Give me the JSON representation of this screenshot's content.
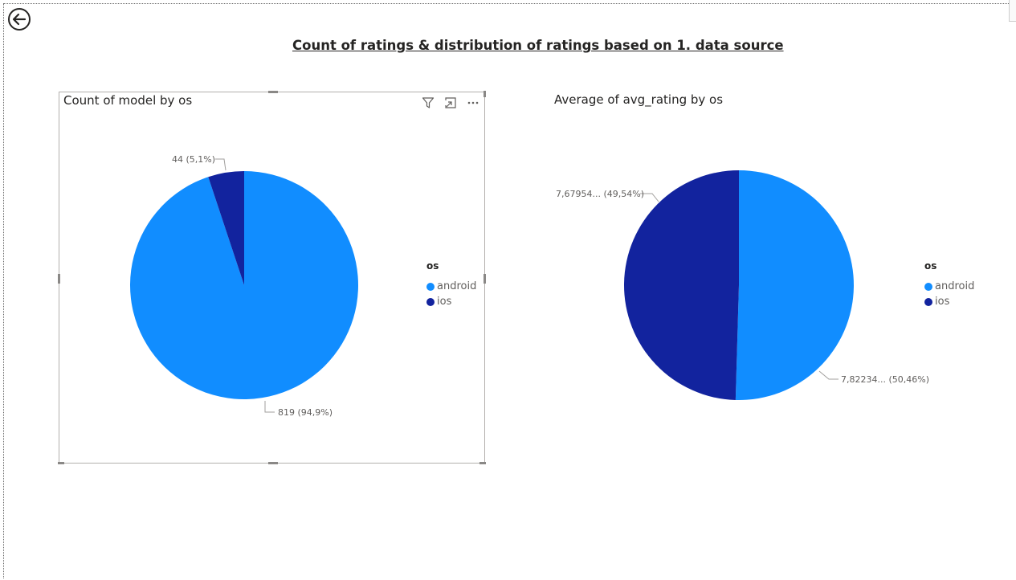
{
  "page": {
    "title": "Count of ratings & distribution of ratings based on 1. data source"
  },
  "colors": {
    "android": "#118DFF",
    "ios": "#12239E"
  },
  "chart_data": [
    {
      "type": "pie",
      "title": "Count of model by os",
      "legend_title": "os",
      "legend_position": "right",
      "categories": [
        "android",
        "ios"
      ],
      "values": [
        819,
        44
      ],
      "labels": [
        "819 (94,9%)",
        "44 (5,1%)"
      ]
    },
    {
      "type": "pie",
      "title": "Average of avg_rating by os",
      "legend_title": "os",
      "legend_position": "right",
      "categories": [
        "android",
        "ios"
      ],
      "values": [
        7.82234,
        7.67954
      ],
      "labels": [
        "7,82234... (50,46%)",
        "7,67954... (49,54%)"
      ]
    }
  ]
}
